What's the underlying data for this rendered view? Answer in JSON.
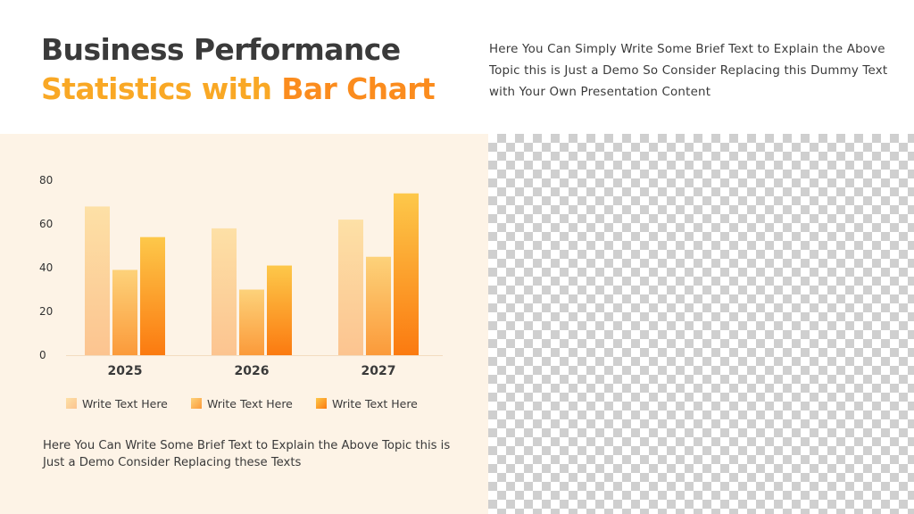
{
  "header": {
    "title_line1": "Business Performance",
    "title_line2_part1": "Statistics with ",
    "title_line2_part2": "Bar Chart",
    "intro_text": "Here You Can Simply Write Some Brief Text to Explain the Above Topic this is Just a Demo So Consider Replacing this Dummy Text with Your Own Presentation Content"
  },
  "footer": {
    "text": "Here You Can Write Some Brief Text to Explain the Above Topic this is Just a Demo Consider Replacing these Texts"
  },
  "colors": {
    "title_dark": "#3a3a3a",
    "accent_yellow": "#f9a825",
    "accent_orange": "#fb8c1e",
    "panel_bg": "#fdf3e6",
    "series": [
      {
        "top": "#fde0a6",
        "bottom": "#fcc490"
      },
      {
        "top": "#fdd27a",
        "bottom": "#fb9a3a"
      },
      {
        "top": "#fdc84a",
        "bottom": "#fb7a10"
      }
    ]
  },
  "chart_data": {
    "type": "bar",
    "categories": [
      "2025",
      "2026",
      "2027"
    ],
    "series": [
      {
        "name": "Write Text Here",
        "values": [
          68,
          58,
          62
        ]
      },
      {
        "name": "Write Text Here",
        "values": [
          39,
          30,
          45
        ]
      },
      {
        "name": "Write Text Here",
        "values": [
          54,
          41,
          74
        ]
      }
    ],
    "yticks": [
      0,
      20,
      40,
      60,
      80
    ],
    "ylim": [
      0,
      80
    ],
    "grid": false,
    "legend_position": "bottom"
  }
}
